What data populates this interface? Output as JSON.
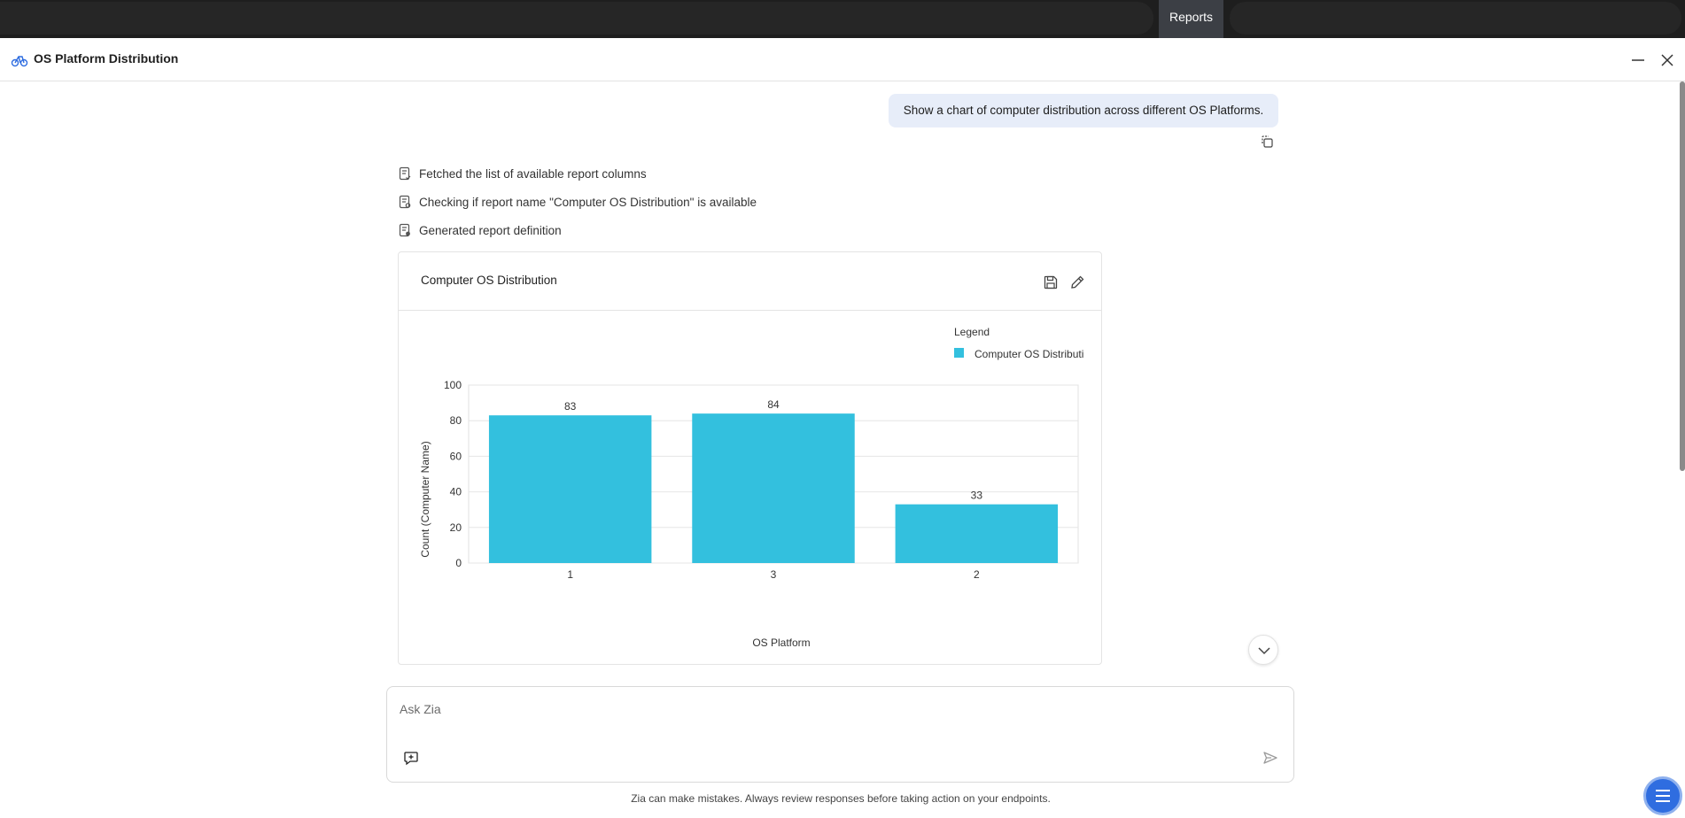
{
  "topbar": {
    "active_tab": "Reports"
  },
  "window": {
    "title": "OS Platform Distribution"
  },
  "conversation": {
    "user_message": "Show a chart of computer distribution across different OS Platforms.",
    "steps": [
      "Fetched the list of available report columns",
      "Checking if report name \"Computer OS Distribution\" is available",
      "Generated report definition"
    ]
  },
  "report_card": {
    "title": "Computer OS Distribution"
  },
  "chart_data": {
    "type": "bar",
    "categories": [
      "1",
      "3",
      "2"
    ],
    "series": [
      {
        "name": "Computer OS Distributi",
        "values": [
          83,
          84,
          33
        ]
      }
    ],
    "xlabel": "OS Platform",
    "ylabel": "Count (Computer Name)",
    "ylim": [
      0,
      100
    ],
    "yticks": [
      0,
      20,
      40,
      60,
      80,
      100
    ],
    "legend_title": "Legend",
    "legend_position": "top-right",
    "data_labels": true,
    "grid": true,
    "bar_color": "#33c0de"
  },
  "input": {
    "placeholder": "Ask Zia"
  },
  "disclaimer": "Zia can make mistakes. Always review responses before taking action on your endpoints.",
  "colors": {
    "accent": "#2f6de0",
    "bar": "#33c0de",
    "user_bubble": "#e7edf9",
    "topbar": "#1e1e1e"
  },
  "icons": [
    "app-icon",
    "minimize-icon",
    "close-icon",
    "copy-icon",
    "step-icon",
    "save-icon",
    "edit-icon",
    "chevron-down-icon",
    "new-chat-icon",
    "send-icon",
    "menu-icon"
  ]
}
